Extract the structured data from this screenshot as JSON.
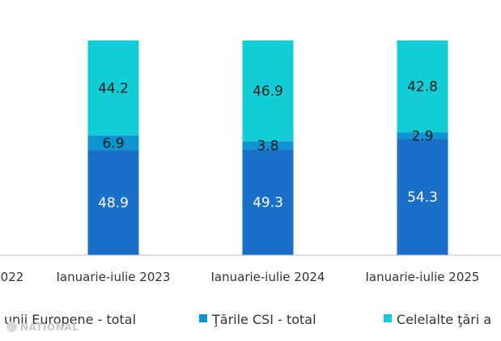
{
  "chart_data": {
    "type": "bar",
    "stacked": true,
    "normalized_percent": true,
    "categories": [
      "022",
      "Ianuarie-iulie 2023",
      "Ianuarie-iulie 2024",
      "Ianuarie-iulie 2025"
    ],
    "series": [
      {
        "name": "unii Europene - total",
        "values": [
          null,
          48.9,
          49.3,
          54.3
        ],
        "labels": [
          "",
          "48.9",
          "49.3",
          "54.3"
        ],
        "color": "#1a6fc9",
        "label_color": "#ffffff"
      },
      {
        "name": "Ţările CSI - total",
        "values": [
          null,
          6.9,
          3.8,
          2.9
        ],
        "labels": [
          "",
          "6.9",
          "3.8",
          "2.9"
        ],
        "color": "#0e94d0",
        "label_color": "#1a1a1a"
      },
      {
        "name": "Celelalte ţări a",
        "values": [
          null,
          44.2,
          46.9,
          42.8
        ],
        "labels": [
          "",
          "44.2",
          "46.9",
          "42.8"
        ],
        "color": "#12ccd6",
        "label_color": "#1a1a1a"
      }
    ],
    "ylim": [
      0,
      100
    ],
    "grid": false,
    "legend_position": "bottom"
  },
  "watermark": {
    "text": "NATIONAL"
  }
}
